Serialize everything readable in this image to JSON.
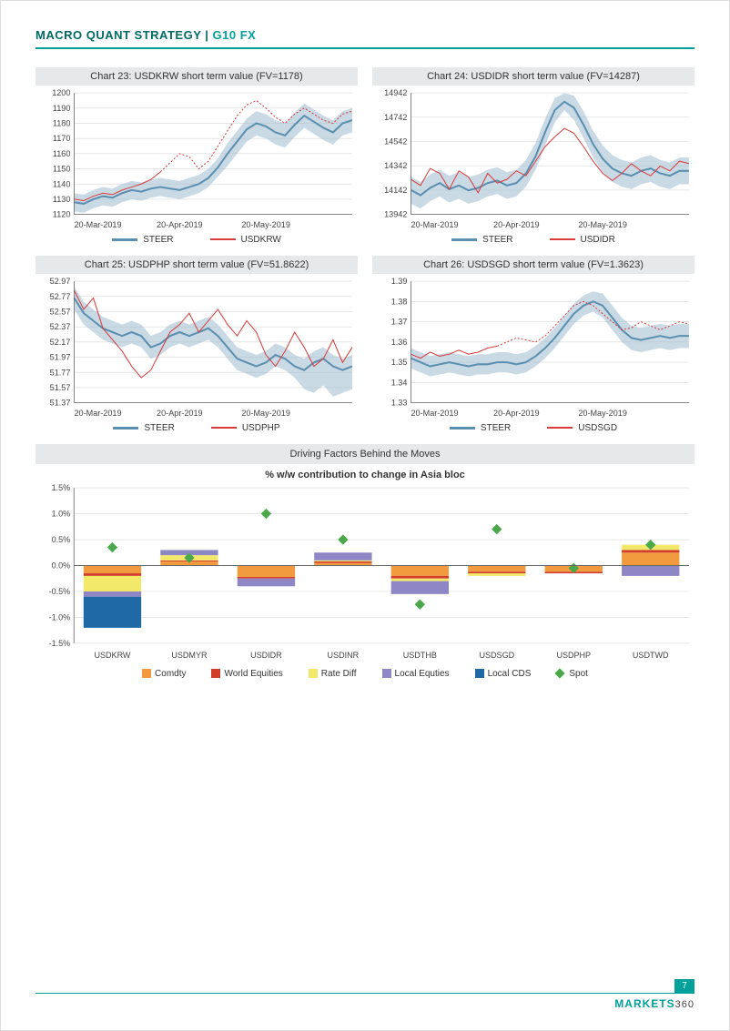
{
  "header": {
    "part1": "MACRO QUANT STRATEGY",
    "sep": " | ",
    "part2": "G10 FX"
  },
  "colors": {
    "steer": "#5b8fb0",
    "band": "#9dbccf",
    "fx": "#d93a3a",
    "grid": "#d8d8d8",
    "axis": "#666666",
    "titlebg": "#e6e8ea"
  },
  "lineCharts": [
    {
      "id": "c23",
      "title": "Chart 23: USDKRW short term value (FV=1178)",
      "xTicks": [
        "20-Mar-2019",
        "20-Apr-2019",
        "20-May-2019"
      ],
      "yMin": 1120,
      "yMax": 1200,
      "yStep": 10,
      "legend": {
        "a": "STEER",
        "b": "USDKRW"
      },
      "steer": [
        1128,
        1127,
        1130,
        1132,
        1131,
        1134,
        1136,
        1135,
        1137,
        1138,
        1137,
        1136,
        1138,
        1140,
        1144,
        1151,
        1160,
        1168,
        1176,
        1180,
        1178,
        1174,
        1172,
        1179,
        1185,
        1181,
        1177,
        1174,
        1180,
        1182
      ],
      "bandUpper": [
        1134,
        1133,
        1136,
        1138,
        1137,
        1140,
        1142,
        1141,
        1143,
        1144,
        1143,
        1142,
        1144,
        1146,
        1150,
        1157,
        1167,
        1175,
        1183,
        1188,
        1186,
        1182,
        1180,
        1187,
        1193,
        1189,
        1185,
        1182,
        1188,
        1190
      ],
      "bandLower": [
        1122,
        1121,
        1124,
        1126,
        1125,
        1128,
        1130,
        1129,
        1131,
        1132,
        1131,
        1130,
        1132,
        1134,
        1138,
        1145,
        1152,
        1160,
        1168,
        1172,
        1170,
        1166,
        1164,
        1171,
        1177,
        1173,
        1169,
        1166,
        1172,
        1174
      ],
      "fx": [
        1130,
        1129,
        1132,
        1134,
        1133,
        1136,
        1138,
        1140,
        1143,
        1148,
        1154,
        1160,
        1158,
        1150,
        1155,
        1165,
        1175,
        1185,
        1192,
        1195,
        1190,
        1184,
        1180,
        1186,
        1190,
        1186,
        1182,
        1180,
        1186,
        1188
      ],
      "fxDashFrom": 9
    },
    {
      "id": "c24",
      "title": "Chart 24: USDIDR short term value (FV=14287)",
      "xTicks": [
        "20-Mar-2019",
        "20-Apr-2019",
        "20-May-2019"
      ],
      "yMin": 13942,
      "yMax": 14942,
      "yStep": 200,
      "legend": {
        "a": "STEER",
        "b": "USDIDR"
      },
      "steer": [
        14142,
        14100,
        14160,
        14200,
        14150,
        14180,
        14140,
        14160,
        14200,
        14220,
        14180,
        14200,
        14280,
        14420,
        14620,
        14800,
        14870,
        14820,
        14680,
        14520,
        14400,
        14320,
        14280,
        14260,
        14300,
        14320,
        14280,
        14260,
        14300,
        14300
      ],
      "bandUpper": [
        14250,
        14210,
        14270,
        14310,
        14260,
        14290,
        14250,
        14270,
        14310,
        14330,
        14290,
        14310,
        14390,
        14530,
        14730,
        14900,
        14940,
        14920,
        14790,
        14630,
        14510,
        14430,
        14390,
        14370,
        14410,
        14430,
        14390,
        14370,
        14410,
        14410
      ],
      "bandLower": [
        14030,
        13990,
        14050,
        14090,
        14040,
        14070,
        14030,
        14050,
        14090,
        14110,
        14070,
        14090,
        14170,
        14310,
        14510,
        14700,
        14800,
        14720,
        14570,
        14410,
        14290,
        14210,
        14170,
        14150,
        14190,
        14210,
        14170,
        14150,
        14190,
        14190
      ],
      "fx": [
        14230,
        14180,
        14320,
        14280,
        14150,
        14300,
        14250,
        14120,
        14280,
        14200,
        14230,
        14300,
        14260,
        14380,
        14500,
        14580,
        14650,
        14610,
        14500,
        14380,
        14280,
        14220,
        14280,
        14360,
        14300,
        14260,
        14340,
        14300,
        14380,
        14360
      ],
      "fxDashFrom": -1
    },
    {
      "id": "c25",
      "title": "Chart 25: USDPHP short term value (FV=51.8622)",
      "xTicks": [
        "20-Mar-2019",
        "20-Apr-2019",
        "20-May-2019"
      ],
      "yMin": 51.37,
      "yMax": 52.97,
      "yStep": 0.2,
      "legend": {
        "a": "STEER",
        "b": "USDPHP"
      },
      "steer": [
        52.75,
        52.55,
        52.45,
        52.35,
        52.3,
        52.25,
        52.3,
        52.25,
        52.1,
        52.15,
        52.25,
        52.3,
        52.25,
        52.3,
        52.35,
        52.25,
        52.1,
        51.95,
        51.9,
        51.85,
        51.9,
        52.0,
        51.95,
        51.85,
        51.8,
        51.9,
        51.95,
        51.85,
        51.8,
        51.85
      ],
      "bandUpper": [
        52.9,
        52.7,
        52.6,
        52.5,
        52.45,
        52.4,
        52.45,
        52.4,
        52.25,
        52.3,
        52.4,
        52.45,
        52.4,
        52.45,
        52.5,
        52.4,
        52.25,
        52.1,
        52.05,
        52.0,
        52.05,
        52.15,
        52.1,
        52.0,
        51.95,
        52.05,
        52.1,
        52.0,
        51.95,
        52.0
      ],
      "bandLower": [
        52.6,
        52.4,
        52.3,
        52.2,
        52.15,
        52.1,
        52.15,
        52.1,
        51.95,
        52.0,
        52.1,
        52.15,
        52.1,
        52.15,
        52.2,
        52.1,
        51.95,
        51.8,
        51.75,
        51.7,
        51.75,
        51.85,
        51.8,
        51.7,
        51.55,
        51.5,
        51.6,
        51.45,
        51.5,
        51.55
      ],
      "fx": [
        52.85,
        52.6,
        52.75,
        52.35,
        52.2,
        52.05,
        51.85,
        51.7,
        51.8,
        52.05,
        52.3,
        52.4,
        52.55,
        52.3,
        52.45,
        52.6,
        52.4,
        52.25,
        52.45,
        52.3,
        52.0,
        51.85,
        52.05,
        52.3,
        52.1,
        51.85,
        51.95,
        52.2,
        51.9,
        52.1
      ],
      "fxDashFrom": -1
    },
    {
      "id": "c26",
      "title": "Chart 26: USDSGD short term value (FV=1.3623)",
      "xTicks": [
        "20-Mar-2019",
        "20-Apr-2019",
        "20-May-2019"
      ],
      "yMin": 1.33,
      "yMax": 1.39,
      "yStep": 0.01,
      "legend": {
        "a": "STEER",
        "b": "USDSGD"
      },
      "steer": [
        1.352,
        1.35,
        1.348,
        1.349,
        1.35,
        1.349,
        1.348,
        1.349,
        1.349,
        1.35,
        1.35,
        1.349,
        1.35,
        1.353,
        1.357,
        1.362,
        1.368,
        1.374,
        1.378,
        1.38,
        1.378,
        1.372,
        1.366,
        1.362,
        1.361,
        1.362,
        1.363,
        1.362,
        1.363,
        1.363
      ],
      "bandUpper": [
        1.357,
        1.355,
        1.353,
        1.354,
        1.355,
        1.354,
        1.353,
        1.354,
        1.354,
        1.355,
        1.355,
        1.354,
        1.355,
        1.358,
        1.362,
        1.367,
        1.373,
        1.379,
        1.383,
        1.385,
        1.384,
        1.378,
        1.372,
        1.368,
        1.367,
        1.368,
        1.369,
        1.368,
        1.369,
        1.369
      ],
      "bandLower": [
        1.347,
        1.345,
        1.343,
        1.344,
        1.345,
        1.344,
        1.343,
        1.344,
        1.344,
        1.345,
        1.345,
        1.344,
        1.345,
        1.348,
        1.352,
        1.357,
        1.363,
        1.369,
        1.373,
        1.375,
        1.372,
        1.366,
        1.36,
        1.356,
        1.355,
        1.356,
        1.357,
        1.356,
        1.357,
        1.357
      ],
      "fx": [
        1.354,
        1.352,
        1.355,
        1.353,
        1.354,
        1.356,
        1.354,
        1.355,
        1.357,
        1.358,
        1.36,
        1.362,
        1.361,
        1.36,
        1.363,
        1.368,
        1.373,
        1.378,
        1.38,
        1.378,
        1.374,
        1.37,
        1.366,
        1.367,
        1.37,
        1.368,
        1.366,
        1.368,
        1.37,
        1.369
      ],
      "fxDashFrom": 9
    }
  ],
  "drivingFactors": {
    "sectionTitle": "Driving Factors Behind the Moves",
    "chartTitle": "% w/w contribution to change in Asia bloc",
    "yMin": -1.5,
    "yMax": 1.5,
    "yStep": 0.5,
    "yFormat": "pct",
    "categories": [
      "USDKRW",
      "USDMYR",
      "USDIDR",
      "USDINR",
      "USDTHB",
      "USDSGD",
      "USDPHP",
      "USDTWD"
    ],
    "series": [
      {
        "name": "Comdty",
        "color": "#f29b3e",
        "values": [
          -0.15,
          0.08,
          -0.22,
          0.05,
          -0.2,
          -0.12,
          -0.12,
          0.25
        ]
      },
      {
        "name": "World Equities",
        "color": "#d23c2a",
        "values": [
          -0.05,
          0.02,
          -0.03,
          0.03,
          -0.05,
          -0.03,
          -0.03,
          0.05
        ]
      },
      {
        "name": "Rate Diff",
        "color": "#f2e96b",
        "values": [
          -0.3,
          0.1,
          0.0,
          0.02,
          -0.05,
          -0.05,
          0.0,
          0.1
        ]
      },
      {
        "name": "Local Equties",
        "color": "#8f86c6",
        "values": [
          -0.1,
          0.1,
          -0.15,
          0.15,
          -0.25,
          0.0,
          0.0,
          -0.2
        ]
      },
      {
        "name": "Local CDS",
        "color": "#1f6aa5",
        "values": [
          -0.6,
          0.0,
          0.0,
          0.0,
          0.0,
          0.0,
          0.0,
          0.0
        ]
      }
    ],
    "spot": {
      "name": "Spot",
      "color": "#4aa84a",
      "values": [
        0.35,
        0.15,
        1.0,
        0.5,
        -0.75,
        0.7,
        -0.05,
        0.4
      ]
    }
  },
  "footer": {
    "page": "7",
    "brand1": "MARKETS",
    "brand2": "360"
  }
}
